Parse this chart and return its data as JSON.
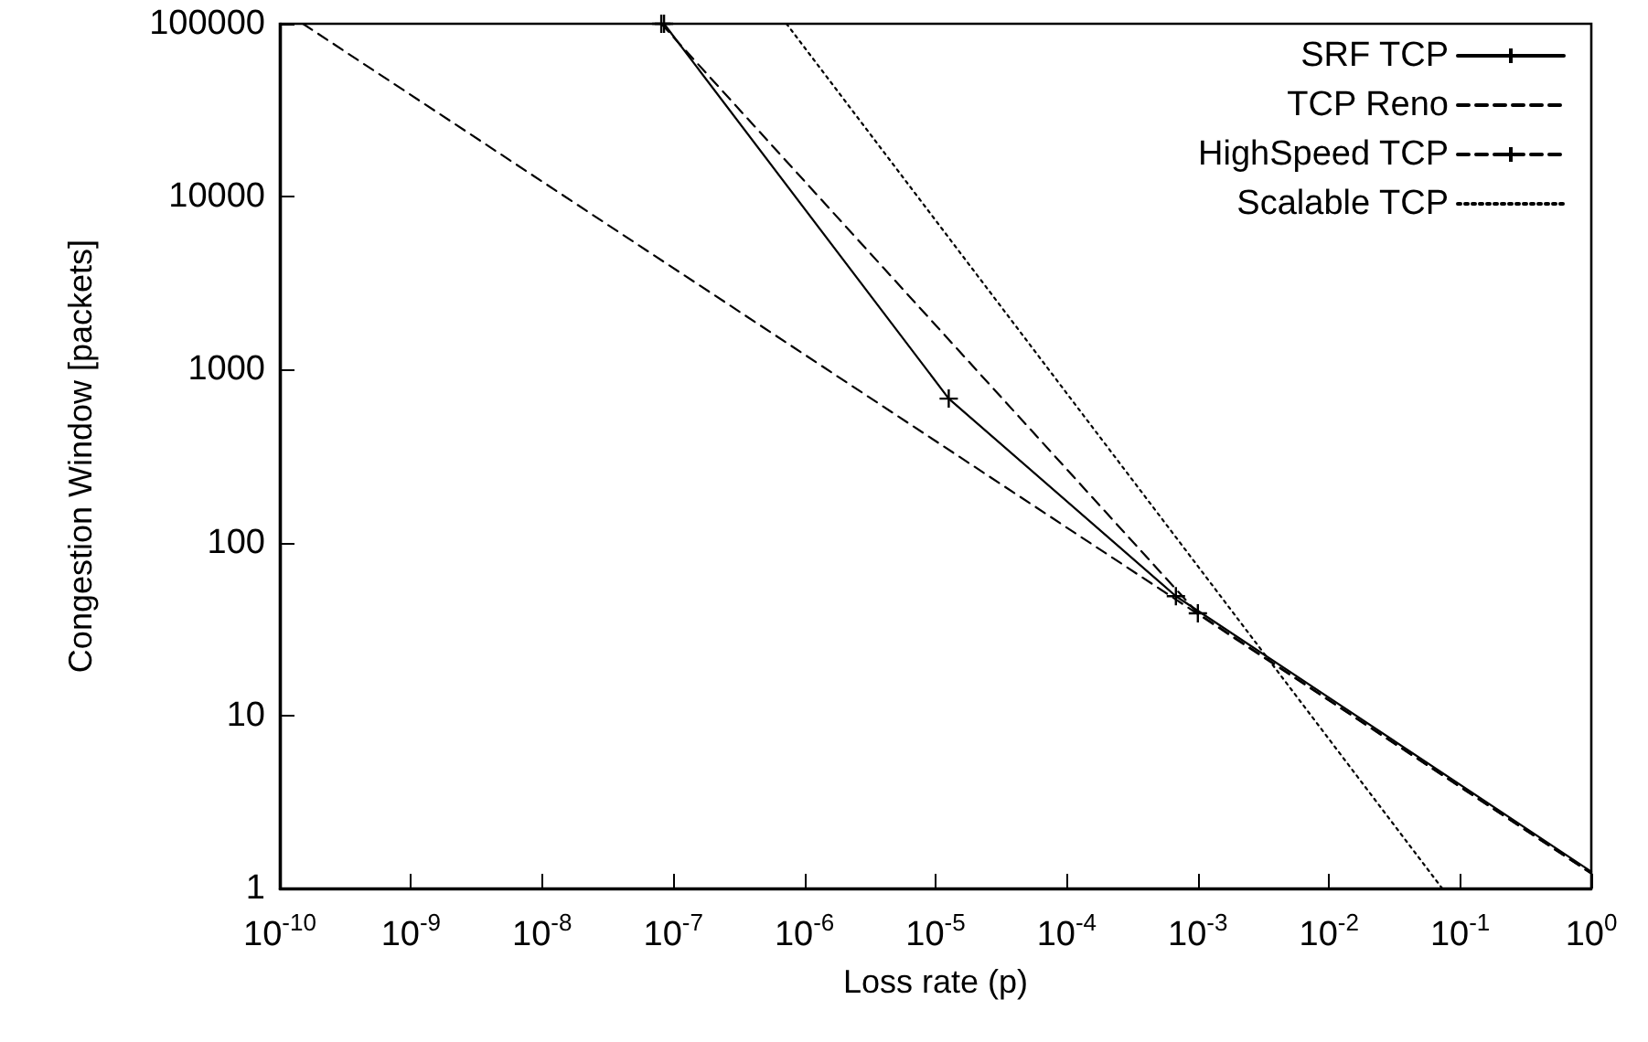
{
  "chart_data": {
    "type": "line",
    "xlabel": "Loss rate (p)",
    "ylabel": "Congestion Window [packets]",
    "log": "xy",
    "grid": false,
    "legend": "top right",
    "xlim": [
      1e-10,
      1
    ],
    "ylim": [
      1,
      100000
    ],
    "xticks": [
      {
        "value": 1e-10,
        "label": "10$^{-10}$"
      },
      {
        "value": 1e-09,
        "label": "10$^{-9}$"
      },
      {
        "value": 1e-08,
        "label": "10$^{-8}$"
      },
      {
        "value": 1e-07,
        "label": "10$^{-7}$"
      },
      {
        "value": 1e-06,
        "label": "10$^{-6}$"
      },
      {
        "value": 1e-05,
        "label": "10$^{-5}$"
      },
      {
        "value": 0.0001,
        "label": "10$^{-4}$"
      },
      {
        "value": 0.001,
        "label": "10$^{-3}$"
      },
      {
        "value": 0.01,
        "label": "10$^{-2}$"
      },
      {
        "value": 0.1,
        "label": "10$^{-1}$"
      },
      {
        "value": 1,
        "label": "10$^{0}$"
      }
    ],
    "yticks": [
      1,
      10,
      100,
      1000,
      10000,
      100000
    ],
    "series": [
      {
        "name": "SRF TCP",
        "color": "#000000",
        "line_style": "solid",
        "marker": "cross",
        "x": [
          8.5e-08,
          1.26e-05,
          0.00068,
          1
        ],
        "values": [
          100000,
          680,
          49,
          1.25
        ]
      },
      {
        "name": "TCP Reno",
        "color": "#000000",
        "line_style": "dashed",
        "marker": "none",
        "x": [
          1.5e-10,
          1
        ],
        "values": [
          100000,
          1.22
        ]
      },
      {
        "name": "HighSpeed TCP",
        "color": "#000000",
        "line_style": "dashed",
        "marker": "cross",
        "x": [
          8.1e-08,
          0.001,
          1
        ],
        "values": [
          100000,
          39,
          1.22
        ]
      },
      {
        "name": "Scalable TCP",
        "color": "#000000",
        "line_style": "dotted",
        "marker": "none",
        "x": [
          7.3e-07,
          0.073
        ],
        "values": [
          100000,
          1
        ]
      }
    ]
  }
}
